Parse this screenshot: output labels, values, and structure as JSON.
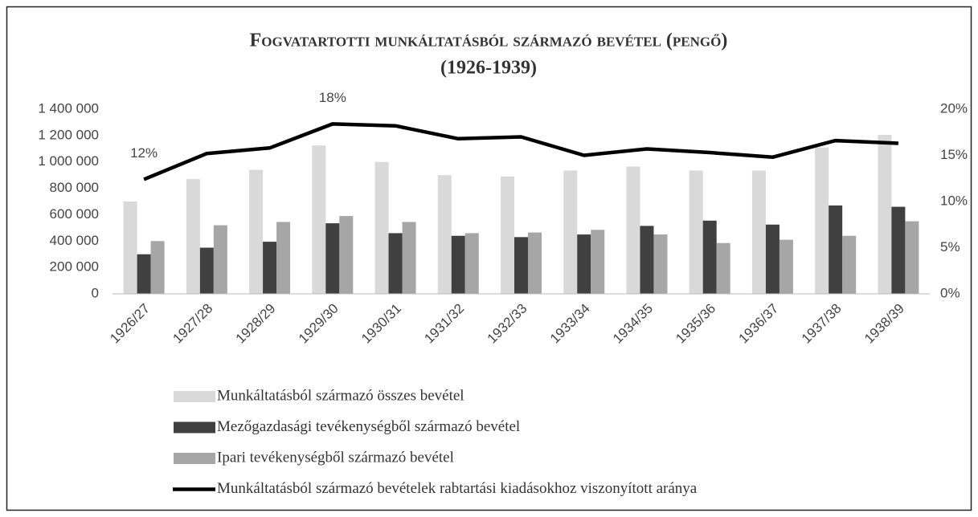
{
  "chart_data": {
    "type": "bar-line",
    "title": "Fogvatartotti munkáltatásból származó bevétel (pengő)",
    "subtitle": "(1926-1939)",
    "categories": [
      "1926/27",
      "1927/28",
      "1928/29",
      "1929/30",
      "1930/31",
      "1931/32",
      "1932/33",
      "1933/34",
      "1934/35",
      "1935/36",
      "1936/37",
      "1937/38",
      "1938/39"
    ],
    "series": [
      {
        "name": "Munkáltatásból származó összes bevétel",
        "type": "bar",
        "color": "#d9d9d9",
        "values": [
          700000,
          870000,
          940000,
          1125000,
          1000000,
          900000,
          890000,
          935000,
          965000,
          935000,
          935000,
          1110000,
          1205000
        ]
      },
      {
        "name": "Mezőgazdasági tevékenységből származó bevétel",
        "type": "bar",
        "color": "#404040",
        "values": [
          300000,
          350000,
          395000,
          535000,
          460000,
          440000,
          430000,
          450000,
          515000,
          555000,
          525000,
          670000,
          660000
        ]
      },
      {
        "name": "Ipari tevékenységből származó bevétel",
        "type": "bar",
        "color": "#a6a6a6",
        "values": [
          400000,
          520000,
          545000,
          590000,
          545000,
          460000,
          465000,
          485000,
          450000,
          385000,
          410000,
          440000,
          550000
        ]
      },
      {
        "name": "Munkáltatásból származó bevételek rabtartási kiadásokhoz viszonyított aránya",
        "type": "line",
        "axis": "y2",
        "color": "#000000",
        "values": [
          12.4,
          15.2,
          15.8,
          18.4,
          18.2,
          16.8,
          17.0,
          15.0,
          15.7,
          15.3,
          14.8,
          16.6,
          16.3
        ],
        "value_labels": [
          "12%",
          null,
          null,
          "18%",
          null,
          null,
          null,
          null,
          null,
          null,
          null,
          null,
          null
        ]
      }
    ],
    "ylim": [
      0,
      1400000
    ],
    "yticks": [
      0,
      {
        "value": 200000,
        "label": "200 000"
      },
      {
        "value": 400000,
        "label": "400 000"
      },
      {
        "value": 600000,
        "label": "600 000"
      },
      {
        "value": 800000,
        "label": "800 000"
      },
      {
        "value": 1000000,
        "label": "1 000 000"
      },
      {
        "value": 1200000,
        "label": "1 200 000"
      },
      {
        "value": 1400000,
        "label": "1 400 000"
      }
    ],
    "y2lim": [
      0,
      20
    ],
    "y2ticks": [
      {
        "value": 0,
        "label": "0%"
      },
      {
        "value": 5,
        "label": "5%"
      },
      {
        "value": 10,
        "label": "10%"
      },
      {
        "value": 15,
        "label": "15%"
      },
      {
        "value": 20,
        "label": "20%"
      }
    ],
    "grid": false,
    "legend": "bottom"
  }
}
